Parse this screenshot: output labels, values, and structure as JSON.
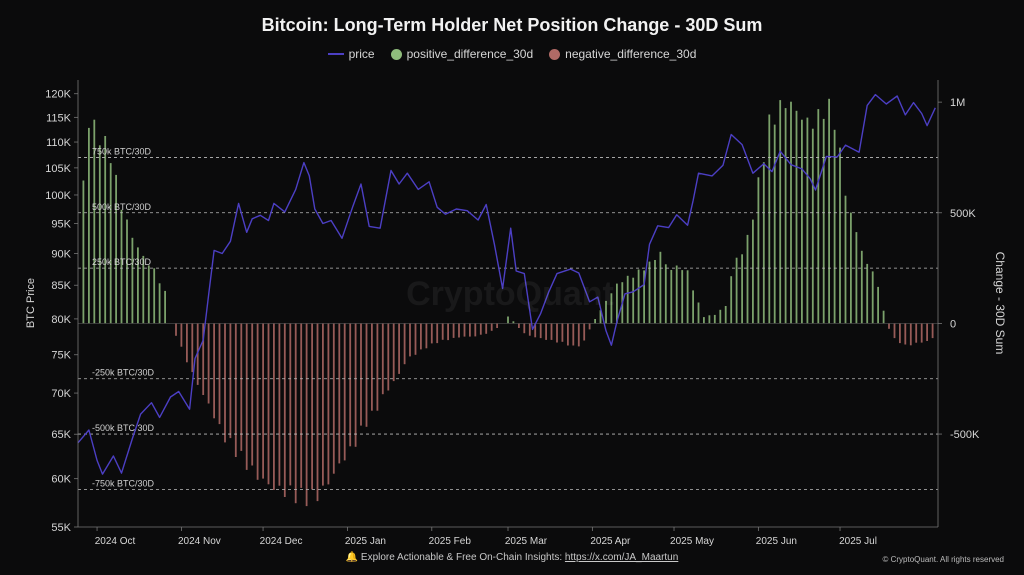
{
  "chart_data": {
    "type": "bar",
    "title": "Bitcoin: Long-Term Holder Net Position Change - 30D Sum",
    "legend_position": "top-center",
    "left_axis": {
      "label": "BTC Price",
      "scale": "log",
      "ticks": [
        "120K",
        "115K",
        "110K",
        "105K",
        "100K",
        "95K",
        "90K",
        "85K",
        "80K",
        "75K",
        "70K",
        "65K",
        "60K",
        "55K"
      ],
      "tick_values": [
        120000,
        115000,
        110000,
        105000,
        100000,
        95000,
        90000,
        85000,
        80000,
        75000,
        70000,
        65000,
        60000,
        55000
      ],
      "range": [
        55000,
        123000
      ]
    },
    "right_axis": {
      "label": "Change - 30D Sum",
      "ticks": [
        "1M",
        "500K",
        "0",
        "-500K"
      ],
      "tick_values": [
        1000000,
        500000,
        0,
        -500000
      ],
      "range": [
        -920000,
        1100000
      ]
    },
    "x_axis": {
      "ticks": [
        "2024 Oct",
        "2024 Nov",
        "2024 Dec",
        "2025 Jan",
        "2025 Feb",
        "2025 Mar",
        "2025 Apr",
        "2025 May",
        "2025 Jun",
        "2025 Jul"
      ],
      "tick_dates": [
        "2024-10-01",
        "2024-11-01",
        "2024-12-01",
        "2025-01-01",
        "2025-02-01",
        "2025-03-01",
        "2025-04-01",
        "2025-05-01",
        "2025-06-01",
        "2025-07-01"
      ],
      "range": [
        "2024-09-24",
        "2025-08-06"
      ]
    },
    "reference_lines": [
      {
        "label": "750k BTC/30D",
        "value": 750000
      },
      {
        "label": "500k BTC/30D",
        "value": 500000
      },
      {
        "label": "250k BTC/30D",
        "value": 250000
      },
      {
        "label": "-250k BTC/30D",
        "value": -250000
      },
      {
        "label": "-500k BTC/30D",
        "value": -500000
      },
      {
        "label": "-750k BTC/30D",
        "value": -750000
      }
    ],
    "series": [
      {
        "name": "price",
        "color": "#4c3fc4",
        "points": [
          [
            "2024-09-24",
            64000
          ],
          [
            "2024-09-28",
            65500
          ],
          [
            "2024-10-01",
            62000
          ],
          [
            "2024-10-03",
            60500
          ],
          [
            "2024-10-07",
            62500
          ],
          [
            "2024-10-10",
            60600
          ],
          [
            "2024-10-14",
            64500
          ],
          [
            "2024-10-17",
            67400
          ],
          [
            "2024-10-21",
            68800
          ],
          [
            "2024-10-24",
            67000
          ],
          [
            "2024-10-28",
            69500
          ],
          [
            "2024-10-31",
            70200
          ],
          [
            "2024-11-04",
            68000
          ],
          [
            "2024-11-06",
            74500
          ],
          [
            "2024-11-09",
            77000
          ],
          [
            "2024-11-11",
            83500
          ],
          [
            "2024-11-13",
            90500
          ],
          [
            "2024-11-16",
            90000
          ],
          [
            "2024-11-19",
            92000
          ],
          [
            "2024-11-22",
            98500
          ],
          [
            "2024-11-25",
            93500
          ],
          [
            "2024-11-27",
            95800
          ],
          [
            "2024-11-30",
            96400
          ],
          [
            "2024-12-03",
            95500
          ],
          [
            "2024-12-05",
            98500
          ],
          [
            "2024-12-09",
            97000
          ],
          [
            "2024-12-13",
            101000
          ],
          [
            "2024-12-16",
            106000
          ],
          [
            "2024-12-18",
            103500
          ],
          [
            "2024-12-20",
            97500
          ],
          [
            "2024-12-23",
            95000
          ],
          [
            "2024-12-26",
            95500
          ],
          [
            "2024-12-30",
            92500
          ],
          [
            "2025-01-03",
            98000
          ],
          [
            "2025-01-06",
            102000
          ],
          [
            "2025-01-09",
            94500
          ],
          [
            "2025-01-13",
            94200
          ],
          [
            "2025-01-17",
            104500
          ],
          [
            "2025-01-20",
            102000
          ],
          [
            "2025-01-23",
            104000
          ],
          [
            "2025-01-27",
            101000
          ],
          [
            "2025-01-31",
            102400
          ],
          [
            "2025-02-03",
            97800
          ],
          [
            "2025-02-06",
            96600
          ],
          [
            "2025-02-10",
            97500
          ],
          [
            "2025-02-14",
            97200
          ],
          [
            "2025-02-18",
            95600
          ],
          [
            "2025-02-21",
            98300
          ],
          [
            "2025-02-24",
            91500
          ],
          [
            "2025-02-27",
            84500
          ],
          [
            "2025-03-02",
            94200
          ],
          [
            "2025-03-04",
            87200
          ],
          [
            "2025-03-07",
            86800
          ],
          [
            "2025-03-10",
            78500
          ],
          [
            "2025-03-13",
            80800
          ],
          [
            "2025-03-16",
            84000
          ],
          [
            "2025-03-19",
            86800
          ],
          [
            "2025-03-24",
            87500
          ],
          [
            "2025-03-27",
            86900
          ],
          [
            "2025-03-31",
            82500
          ],
          [
            "2025-04-03",
            83200
          ],
          [
            "2025-04-06",
            78300
          ],
          [
            "2025-04-08",
            76300
          ],
          [
            "2025-04-10",
            79600
          ],
          [
            "2025-04-13",
            83700
          ],
          [
            "2025-04-16",
            84000
          ],
          [
            "2025-04-20",
            85100
          ],
          [
            "2025-04-22",
            91500
          ],
          [
            "2025-04-25",
            94600
          ],
          [
            "2025-04-29",
            94300
          ],
          [
            "2025-05-02",
            96500
          ],
          [
            "2025-05-06",
            94700
          ],
          [
            "2025-05-08",
            99000
          ],
          [
            "2025-05-10",
            104000
          ],
          [
            "2025-05-15",
            103500
          ],
          [
            "2025-05-19",
            105500
          ],
          [
            "2025-05-22",
            111500
          ],
          [
            "2025-05-26",
            109500
          ],
          [
            "2025-05-30",
            104000
          ],
          [
            "2025-06-03",
            105800
          ],
          [
            "2025-06-06",
            104300
          ],
          [
            "2025-06-09",
            108200
          ],
          [
            "2025-06-13",
            105600
          ],
          [
            "2025-06-17",
            104800
          ],
          [
            "2025-06-20",
            103000
          ],
          [
            "2025-06-22",
            100900
          ],
          [
            "2025-06-26",
            107200
          ],
          [
            "2025-06-30",
            107100
          ],
          [
            "2025-07-03",
            109400
          ],
          [
            "2025-07-08",
            108000
          ],
          [
            "2025-07-11",
            117500
          ],
          [
            "2025-07-14",
            119800
          ],
          [
            "2025-07-18",
            117800
          ],
          [
            "2025-07-22",
            119500
          ],
          [
            "2025-07-25",
            115500
          ],
          [
            "2025-07-28",
            118100
          ],
          [
            "2025-07-31",
            115800
          ],
          [
            "2025-08-02",
            113300
          ],
          [
            "2025-08-05",
            117000
          ]
        ]
      },
      {
        "name": "positive_difference_30d",
        "color": "#8fbc7c",
        "axis": "right",
        "points": [
          [
            "2024-09-24",
            0
          ],
          [
            "2024-09-27",
            940000
          ],
          [
            "2024-09-30",
            880000
          ],
          [
            "2024-10-03",
            830000
          ],
          [
            "2024-10-06",
            760000
          ],
          [
            "2024-10-10",
            530000
          ],
          [
            "2024-10-14",
            390000
          ],
          [
            "2024-10-18",
            300000
          ],
          [
            "2024-10-22",
            240000
          ],
          [
            "2024-10-26",
            140000
          ],
          [
            "2024-10-28",
            0
          ],
          [
            "2025-02-27",
            0
          ],
          [
            "2025-03-01",
            30000
          ],
          [
            "2025-03-04",
            0
          ],
          [
            "2025-03-29",
            0
          ],
          [
            "2025-04-01",
            0
          ],
          [
            "2025-04-05",
            80000
          ],
          [
            "2025-04-08",
            140000
          ],
          [
            "2025-04-11",
            190000
          ],
          [
            "2025-04-15",
            210000
          ],
          [
            "2025-04-19",
            240000
          ],
          [
            "2025-04-23",
            280000
          ],
          [
            "2025-04-26",
            320000
          ],
          [
            "2025-04-29",
            240000
          ],
          [
            "2025-05-03",
            260000
          ],
          [
            "2025-05-06",
            230000
          ],
          [
            "2025-05-09",
            120000
          ],
          [
            "2025-05-12",
            30000
          ],
          [
            "2025-05-16",
            40000
          ],
          [
            "2025-05-20",
            80000
          ],
          [
            "2025-05-23",
            280000
          ],
          [
            "2025-05-26",
            320000
          ],
          [
            "2025-05-29",
            420000
          ],
          [
            "2025-06-02",
            700000
          ],
          [
            "2025-06-05",
            900000
          ],
          [
            "2025-06-08",
            960000
          ],
          [
            "2025-06-11",
            1000000
          ],
          [
            "2025-06-14",
            980000
          ],
          [
            "2025-06-17",
            930000
          ],
          [
            "2025-06-20",
            900000
          ],
          [
            "2025-06-23",
            930000
          ],
          [
            "2025-06-26",
            990000
          ],
          [
            "2025-06-29",
            920000
          ],
          [
            "2025-07-01",
            760000
          ],
          [
            "2025-07-04",
            520000
          ],
          [
            "2025-07-07",
            420000
          ],
          [
            "2025-07-10",
            280000
          ],
          [
            "2025-07-13",
            240000
          ],
          [
            "2025-07-16",
            120000
          ],
          [
            "2025-07-18",
            0
          ]
        ]
      },
      {
        "name": "negative_difference_30d",
        "color": "#b06a66",
        "axis": "right",
        "points": [
          [
            "2024-10-28",
            0
          ],
          [
            "2024-10-31",
            -80000
          ],
          [
            "2024-11-04",
            -200000
          ],
          [
            "2024-11-08",
            -300000
          ],
          [
            "2024-11-12",
            -390000
          ],
          [
            "2024-11-16",
            -500000
          ],
          [
            "2024-11-20",
            -560000
          ],
          [
            "2024-11-24",
            -620000
          ],
          [
            "2024-11-28",
            -680000
          ],
          [
            "2024-12-02",
            -720000
          ],
          [
            "2024-12-06",
            -750000
          ],
          [
            "2024-12-10",
            -760000
          ],
          [
            "2024-12-14",
            -780000
          ],
          [
            "2024-12-18",
            -790000
          ],
          [
            "2024-12-22",
            -770000
          ],
          [
            "2024-12-26",
            -700000
          ],
          [
            "2024-12-30",
            -620000
          ],
          [
            "2025-01-03",
            -560000
          ],
          [
            "2025-01-07",
            -460000
          ],
          [
            "2025-01-11",
            -400000
          ],
          [
            "2025-01-15",
            -310000
          ],
          [
            "2025-01-19",
            -250000
          ],
          [
            "2025-01-23",
            -160000
          ],
          [
            "2025-01-27",
            -130000
          ],
          [
            "2025-01-31",
            -100000
          ],
          [
            "2025-02-04",
            -80000
          ],
          [
            "2025-02-08",
            -70000
          ],
          [
            "2025-02-12",
            -60000
          ],
          [
            "2025-02-16",
            -60000
          ],
          [
            "2025-02-20",
            -50000
          ],
          [
            "2025-02-24",
            -30000
          ],
          [
            "2025-02-27",
            0
          ],
          [
            "2025-03-04",
            0
          ],
          [
            "2025-03-06",
            -40000
          ],
          [
            "2025-03-10",
            -60000
          ],
          [
            "2025-03-14",
            -70000
          ],
          [
            "2025-03-18",
            -80000
          ],
          [
            "2025-03-22",
            -90000
          ],
          [
            "2025-03-26",
            -110000
          ],
          [
            "2025-03-29",
            -80000
          ],
          [
            "2025-04-01",
            0
          ],
          [
            "2025-07-18",
            0
          ],
          [
            "2025-07-21",
            -70000
          ],
          [
            "2025-07-25",
            -100000
          ],
          [
            "2025-07-29",
            -90000
          ],
          [
            "2025-08-02",
            -80000
          ],
          [
            "2025-08-05",
            -60000
          ]
        ]
      }
    ]
  },
  "watermark": "CryptoQuant",
  "footer": {
    "icon": "bell-icon",
    "text": "Explore Actionable & Free On-Chain Insights: ",
    "link_text": "https://x.com/JA_Maartun"
  },
  "copyright": "© CryptoQuant. All rights reserved"
}
